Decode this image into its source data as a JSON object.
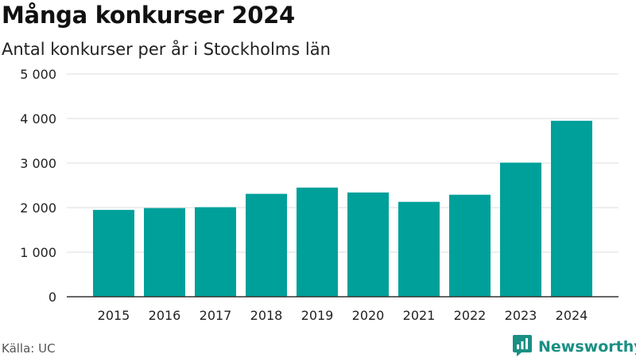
{
  "header": {
    "title": "Många konkurser 2024",
    "subtitle": "Antal konkurser per år i Stockholms län"
  },
  "footer": {
    "source": "Källa: UC",
    "brand": "Newsworthy"
  },
  "colors": {
    "bar": "#00a09a",
    "brand": "#1a8f83"
  },
  "icons": {
    "brand_logo": "newsworthy-logo-icon"
  },
  "chart_data": {
    "type": "bar",
    "categories": [
      "2015",
      "2016",
      "2017",
      "2018",
      "2019",
      "2020",
      "2021",
      "2022",
      "2023",
      "2024"
    ],
    "values": [
      1950,
      1990,
      2010,
      2310,
      2450,
      2340,
      2130,
      2290,
      3010,
      3950
    ],
    "ylim": [
      0,
      5000
    ],
    "yticks": [
      0,
      1000,
      2000,
      3000,
      4000,
      5000
    ],
    "ytick_labels": [
      "0",
      "1 000",
      "2 000",
      "3 000",
      "4 000",
      "5 000"
    ],
    "grid": true,
    "legend": "none"
  }
}
